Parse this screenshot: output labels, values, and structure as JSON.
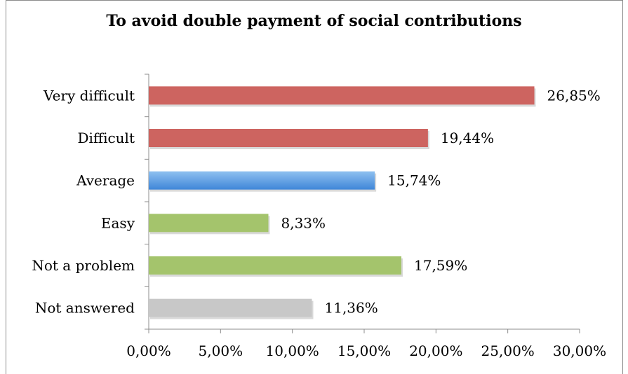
{
  "chart_data": {
    "type": "bar",
    "orientation": "horizontal",
    "title": "To avoid double payment of social contributions",
    "categories": [
      "Very difficult",
      "Difficult",
      "Average",
      "Easy",
      "Not a problem",
      "Not answered"
    ],
    "values": [
      26.85,
      19.44,
      15.74,
      8.33,
      17.59,
      11.36
    ],
    "value_labels": [
      "26,85%",
      "19,44%",
      "15,74%",
      "8,33%",
      "17,59%",
      "11,36%"
    ],
    "bar_colors": [
      "#cd6460",
      "#cd6460",
      "#5a9be0",
      "#a4c46c",
      "#a4c46c",
      "#c8c8c8"
    ],
    "xlim": [
      0,
      30
    ],
    "xticks": [
      0,
      5,
      10,
      15,
      20,
      25,
      30
    ],
    "xtick_labels": [
      "0,00%",
      "5,00%",
      "10,00%",
      "15,00%",
      "20,00%",
      "25,00%",
      "30,00%"
    ],
    "xlabel": "",
    "ylabel": "",
    "grid": false,
    "legend": "none"
  }
}
